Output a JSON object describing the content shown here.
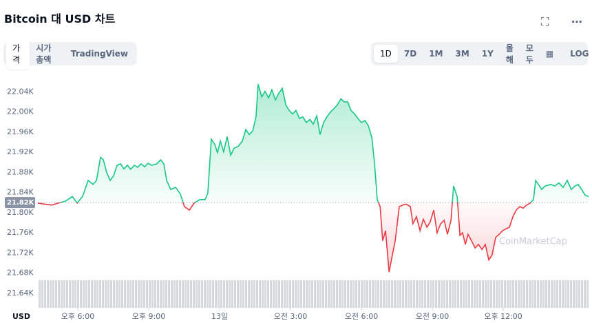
{
  "header": {
    "title": "Bitcoin 대 USD 차트"
  },
  "tabs": [
    "가격",
    "시가총액",
    "TradingView"
  ],
  "ranges": [
    "1D",
    "7D",
    "1M",
    "3M",
    "1Y",
    "올해",
    "모두"
  ],
  "log_button": "LOG",
  "chart_data": {
    "type": "line",
    "currency": "USD",
    "watermark": "CoinMarketCap",
    "x": [
      16.31,
      16.6,
      16.89,
      17.18,
      17.48,
      17.77,
      17.97,
      18.2,
      18.44,
      18.64,
      18.79,
      18.96,
      19.08,
      19.22,
      19.37,
      19.51,
      19.66,
      19.81,
      19.95,
      20.1,
      20.24,
      20.39,
      20.53,
      20.68,
      20.83,
      20.97,
      21.12,
      21.35,
      21.5,
      21.64,
      21.76,
      21.93,
      22.14,
      22.34,
      22.51,
      22.72,
      22.92,
      23.16,
      23.39,
      23.5,
      23.65,
      23.8,
      23.91,
      24.03,
      24.17,
      24.32,
      24.47,
      24.61,
      24.79,
      24.96,
      25.11,
      25.25,
      25.4,
      25.54,
      25.63,
      25.78,
      25.92,
      26.07,
      26.21,
      26.36,
      26.5,
      26.65,
      26.8,
      26.94,
      27.09,
      27.23,
      27.38,
      27.52,
      27.67,
      27.82,
      27.96,
      28.11,
      28.25,
      28.4,
      28.54,
      28.69,
      28.83,
      28.98,
      29.13,
      29.27,
      29.42,
      29.56,
      29.71,
      29.85,
      30.0,
      30.15,
      30.29,
      30.44,
      30.55,
      30.67,
      30.79,
      30.9,
      31.02,
      31.17,
      31.31,
      31.43,
      31.6,
      31.75,
      31.89,
      32.07,
      32.18,
      32.33,
      32.48,
      32.62,
      32.77,
      32.91,
      33.06,
      33.2,
      33.35,
      33.5,
      33.64,
      33.79,
      33.9,
      34.05,
      34.17,
      34.28,
      34.4,
      34.51,
      34.66,
      34.81,
      34.95,
      35.1,
      35.24,
      35.39,
      35.53,
      35.68,
      35.83,
      35.97,
      36.12,
      36.26,
      36.41,
      36.55,
      36.7,
      36.84,
      36.99,
      37.14,
      37.28,
      37.37,
      37.49,
      37.63,
      37.78,
      38.01,
      38.18,
      38.36,
      38.53,
      38.71,
      38.88,
      39.03,
      39.17,
      39.32,
      39.46,
      39.61
    ],
    "series": [
      {
        "color": "#16c784",
        "down_color": "#ea3943",
        "values": [
          21819,
          21817,
          21815,
          21819,
          21823,
          21832,
          21819,
          21832,
          21864,
          21856,
          21864,
          21910,
          21905,
          21880,
          21864,
          21873,
          21894,
          21897,
          21887,
          21894,
          21886,
          21894,
          21890,
          21897,
          21891,
          21898,
          21894,
          21897,
          21905,
          21897,
          21864,
          21846,
          21850,
          21837,
          21812,
          21805,
          21819,
          21826,
          21826,
          21839,
          21946,
          21935,
          21919,
          21942,
          21921,
          21951,
          21914,
          21928,
          21932,
          21942,
          21965,
          21955,
          21962,
          21990,
          22055,
          22030,
          22041,
          22028,
          22044,
          22024,
          22037,
          22047,
          22014,
          22003,
          21996,
          22003,
          21987,
          21990,
          21979,
          21985,
          21976,
          21992,
          21955,
          21979,
          21990,
          22000,
          22006,
          22014,
          22026,
          22020,
          22020,
          22003,
          21996,
          21987,
          21979,
          21983,
          21973,
          21949,
          21901,
          21826,
          21812,
          21744,
          21764,
          21682,
          21716,
          21744,
          21812,
          21815,
          21817,
          21812,
          21778,
          21792,
          21764,
          21787,
          21771,
          21782,
          21805,
          21760,
          21778,
          21785,
          21757,
          21785,
          21853,
          21832,
          21755,
          21760,
          21737,
          21757,
          21744,
          21730,
          21737,
          21727,
          21737,
          21706,
          21716,
          21751,
          21757,
          21764,
          21768,
          21771,
          21792,
          21805,
          21812,
          21809,
          21815,
          21819,
          21826,
          21864,
          21856,
          21846,
          21853,
          21856,
          21853,
          21859,
          21850,
          21864,
          21846,
          21853,
          21856,
          21846,
          21835,
          21832
        ]
      }
    ],
    "reference": {
      "value": 21820,
      "label": "21.82K"
    },
    "xlim": [
      16.31,
      39.61
    ],
    "ylim": [
      21611,
      22065
    ],
    "xticks": [
      {
        "value": 18,
        "label": "오후 6:00"
      },
      {
        "value": 21,
        "label": "오후 9:00"
      },
      {
        "value": 24,
        "label": "13일"
      },
      {
        "value": 27,
        "label": "오전 3:00"
      },
      {
        "value": 30,
        "label": "오전 6:00"
      },
      {
        "value": 33,
        "label": "오전 9:00"
      },
      {
        "value": 36,
        "label": "오후 12:00"
      }
    ],
    "yticks": [
      {
        "value": 22040,
        "label": "22.04K"
      },
      {
        "value": 22000,
        "label": "22.00K"
      },
      {
        "value": 21960,
        "label": "21.96K"
      },
      {
        "value": 21920,
        "label": "21.92K"
      },
      {
        "value": 21880,
        "label": "21.88K"
      },
      {
        "value": 21840,
        "label": "21.84K"
      },
      {
        "value": 21800,
        "label": "21.80K"
      },
      {
        "value": 21760,
        "label": "21.76K"
      },
      {
        "value": 21720,
        "label": "21.72K"
      },
      {
        "value": 21680,
        "label": "21.68K"
      },
      {
        "value": 21640,
        "label": "21.64K"
      }
    ]
  }
}
